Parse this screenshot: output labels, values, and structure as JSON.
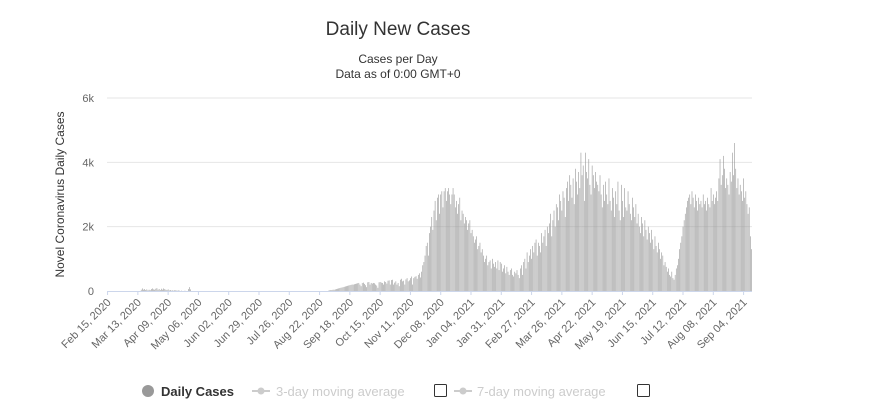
{
  "chart_data": {
    "type": "bar",
    "title": "Daily New Cases",
    "subtitle_line1": "Cases per Day",
    "subtitle_line2": "Data as of 0:00 GMT+0",
    "ylabel": "Novel Coronavirus Daily Cases",
    "xlabel": "",
    "ylim": [
      0,
      6000
    ],
    "y_ticks": [
      {
        "value": 0,
        "label": "0"
      },
      {
        "value": 2000,
        "label": "2k"
      },
      {
        "value": 4000,
        "label": "4k"
      },
      {
        "value": 6000,
        "label": "6k"
      }
    ],
    "x_tick_labels": [
      "Feb 15, 2020",
      "Mar 13, 2020",
      "Apr 09, 2020",
      "May 06, 2020",
      "Jun 02, 2020",
      "Jun 29, 2020",
      "Jul 26, 2020",
      "Aug 22, 2020",
      "Sep 18, 2020",
      "Oct 15, 2020",
      "Nov 11, 2020",
      "Dec 08, 2020",
      "Jan 04, 2021",
      "Jan 31, 2021",
      "Feb 27, 2021",
      "Mar 26, 2021",
      "Apr 22, 2021",
      "May 19, 2021",
      "Jun 15, 2021",
      "Jul 12, 2021",
      "Aug 08, 2021",
      "Sep 04, 2021"
    ],
    "days_between_ticks": 27,
    "series": [
      {
        "name": "Daily Cases",
        "color": "#999999",
        "visible": true
      },
      {
        "name": "3-day moving average",
        "color": "#cccccc",
        "visible": false
      },
      {
        "name": "7-day moving average",
        "color": "#cccccc",
        "visible": false
      }
    ],
    "values": [
      0,
      0,
      0,
      0,
      0,
      0,
      0,
      0,
      0,
      0,
      0,
      0,
      0,
      0,
      0,
      0,
      0,
      0,
      0,
      0,
      0,
      0,
      0,
      0,
      0,
      0,
      0,
      0,
      0,
      0,
      40,
      80,
      40,
      60,
      30,
      50,
      20,
      40,
      30,
      60,
      80,
      50,
      40,
      70,
      90,
      40,
      60,
      30,
      70,
      40,
      80,
      60,
      40,
      30,
      50,
      20,
      30,
      10,
      20,
      10,
      30,
      20,
      10,
      20,
      10,
      0,
      10,
      0,
      0,
      10,
      0,
      0,
      60,
      120,
      50,
      0,
      0,
      0,
      0,
      0,
      0,
      0,
      0,
      0,
      0,
      0,
      0,
      0,
      0,
      0,
      0,
      0,
      0,
      0,
      0,
      0,
      0,
      0,
      0,
      0,
      0,
      0,
      0,
      0,
      0,
      0,
      0,
      0,
      0,
      0,
      0,
      0,
      0,
      0,
      0,
      0,
      0,
      0,
      0,
      0,
      0,
      0,
      0,
      0,
      0,
      0,
      0,
      0,
      0,
      0,
      0,
      0,
      0,
      0,
      0,
      0,
      0,
      0,
      0,
      0,
      0,
      0,
      0,
      0,
      0,
      0,
      0,
      0,
      0,
      0,
      0,
      0,
      0,
      0,
      0,
      0,
      0,
      0,
      0,
      0,
      0,
      0,
      0,
      0,
      0,
      0,
      0,
      0,
      0,
      0,
      0,
      0,
      0,
      0,
      0,
      0,
      0,
      0,
      0,
      0,
      0,
      0,
      0,
      0,
      0,
      0,
      0,
      0,
      0,
      0,
      0,
      0,
      0,
      0,
      0,
      0,
      0,
      10,
      20,
      30,
      30,
      40,
      40,
      50,
      60,
      70,
      80,
      90,
      100,
      110,
      120,
      130,
      140,
      150,
      160,
      170,
      180,
      190,
      200,
      200,
      210,
      220,
      230,
      240,
      250,
      200,
      150,
      250,
      260,
      220,
      180,
      120,
      270,
      280,
      200,
      250,
      230,
      250,
      240,
      200,
      170,
      100,
      270,
      280,
      260,
      250,
      200,
      300,
      280,
      230,
      320,
      330,
      200,
      340,
      350,
      200,
      260,
      300,
      200,
      250,
      150,
      350,
      380,
      300,
      320,
      200,
      360,
      400,
      300,
      330,
      400,
      450,
      200,
      400,
      440,
      460,
      380,
      500,
      550,
      420,
      600,
      800,
      900,
      1100,
      1400,
      1500,
      1100,
      1800,
      2000,
      2300,
      1900,
      2500,
      2800,
      2200,
      2900,
      3000,
      2400,
      3000,
      3100,
      2600,
      3100,
      3200,
      2800,
      3100,
      3200,
      3000,
      2700,
      3000,
      3200,
      3000,
      2600,
      2800,
      2400,
      2700,
      2900,
      2200,
      2500,
      2400,
      2100,
      2300,
      2200,
      1900,
      2100,
      2200,
      1800,
      1900,
      1700,
      1500,
      1600,
      1700,
      1300,
      1400,
      1500,
      1200,
      1300,
      1100,
      900,
      1000,
      1100,
      800,
      900,
      950,
      700,
      1000,
      850,
      750,
      900,
      700,
      950,
      650,
      900,
      850,
      600,
      700,
      800,
      550,
      750,
      600,
      500,
      650,
      700,
      500,
      450,
      600,
      550,
      650,
      500,
      400,
      700,
      800,
      500,
      900,
      1000,
      700,
      1200,
      900,
      1100,
      1300,
      1000,
      1400,
      1200,
      1500,
      1600,
      1100,
      1500,
      1400,
      1200,
      1800,
      1500,
      1700,
      1900,
      1400,
      2000,
      1800,
      2100,
      2400,
      1700,
      2200,
      2500,
      2000,
      2700,
      2600,
      2200,
      3000,
      2800,
      2500,
      3100,
      2900,
      2300,
      3200,
      3400,
      2800,
      3600,
      3300,
      2900,
      3500,
      2700,
      3800,
      3400,
      3000,
      3700,
      3200,
      4300,
      3600,
      3900,
      2800,
      4300,
      3700,
      3500,
      4100,
      3300,
      3000,
      3900,
      3600,
      3200,
      3700,
      3400,
      3300,
      3100,
      3600,
      3000,
      2600,
      3300,
      2800,
      3400,
      3000,
      2700,
      3500,
      2800,
      2500,
      3200,
      2900,
      2300,
      3100,
      2700,
      3400,
      2500,
      2200,
      3300,
      2800,
      2300,
      3200,
      2600,
      2500,
      3100,
      2700,
      2400,
      2200,
      2900,
      2600,
      2300,
      2700,
      2100,
      2400,
      2000,
      1800,
      2300,
      2100,
      1700,
      2200,
      1900,
      1600,
      2000,
      1800,
      1500,
      1900,
      1600,
      1300,
      1700,
      1400,
      1200,
      1500,
      1300,
      1000,
      1200,
      1100,
      800,
      900,
      750,
      600,
      700,
      500,
      450,
      600,
      400,
      350,
      500,
      700,
      800,
      1000,
      1300,
      1500,
      1700,
      2000,
      2200,
      2400,
      2600,
      2800,
      2900,
      3000,
      2700,
      3100,
      2900,
      2600,
      3000,
      2800,
      2500,
      2900,
      2700,
      2800,
      2600,
      3000,
      2700,
      2800,
      2500,
      2900,
      2700,
      2600,
      3200,
      2800,
      3000,
      2700,
      2900,
      3100,
      2800,
      3500,
      4100,
      3300,
      3600,
      4200,
      3800,
      3200,
      3500,
      3300,
      3000,
      3700,
      3400,
      4300,
      3600,
      4600,
      3800,
      3200,
      3500,
      3000,
      3300,
      3100,
      2800,
      3500,
      2900,
      3100,
      2700,
      2400,
      2600,
      1700,
      1300
    ]
  }
}
